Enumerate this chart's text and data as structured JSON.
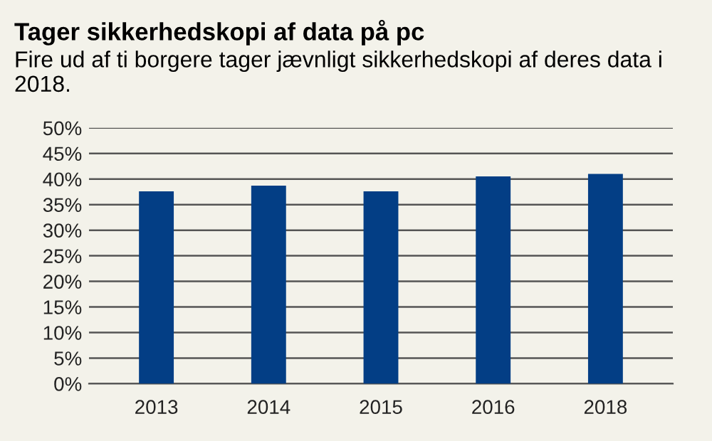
{
  "chart_data": {
    "type": "bar",
    "title": "Tager sikkerhedskopi af data på pc",
    "subtitle": "Fire ud af ti borgere tager jævnligt sikkerhedskopi af deres data i 2018.",
    "categories": [
      "2013",
      "2014",
      "2015",
      "2016",
      "2018"
    ],
    "values": [
      37.6,
      38.7,
      37.6,
      40.5,
      41.0
    ],
    "color": "#033e85",
    "ylim": [
      0,
      50
    ],
    "yticks": [
      {
        "value": 0,
        "label": "0%"
      },
      {
        "value": 5,
        "label": "5%"
      },
      {
        "value": 10,
        "label": "10%"
      },
      {
        "value": 15,
        "label": "15%"
      },
      {
        "value": 20,
        "label": "20%"
      },
      {
        "value": 25,
        "label": "25%"
      },
      {
        "value": 30,
        "label": "30%"
      },
      {
        "value": 35,
        "label": "35%"
      },
      {
        "value": 40,
        "label": "40%"
      },
      {
        "value": 45,
        "label": "45%"
      },
      {
        "value": 50,
        "label": "50%"
      }
    ],
    "grid": "y",
    "legend": false
  }
}
